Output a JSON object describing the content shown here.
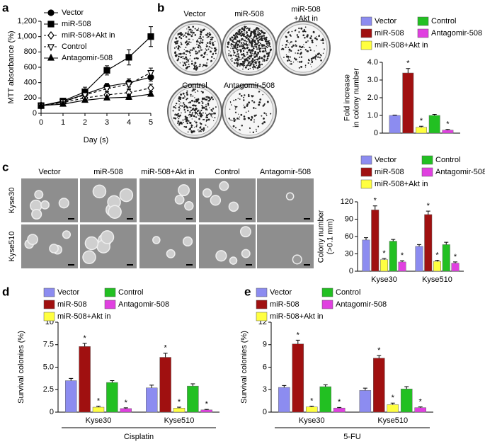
{
  "chart_data": [
    {
      "type": "line",
      "panel": "a",
      "y_label": "MTT absorbance (%)",
      "x_label": "Day (s)",
      "x": [
        0,
        1,
        2,
        3,
        4,
        5
      ],
      "xlim": [
        0,
        5
      ],
      "xticks": [
        0,
        1,
        2,
        3,
        4,
        5
      ],
      "ylim": [
        0,
        1200
      ],
      "yticks": [
        0,
        200,
        400,
        600,
        800,
        {
          "value": 1000,
          "label": "1,000"
        },
        {
          "value": 1200,
          "label": "1,200"
        }
      ],
      "series": [
        {
          "name": "Vector",
          "color": "#000000",
          "marker": "circle",
          "filled": true,
          "dashed": false,
          "values": [
            100,
            150,
            250,
            350,
            400,
            470
          ],
          "errors": [
            10,
            15,
            40,
            40,
            50,
            50
          ]
        },
        {
          "name": "miR-508",
          "color": "#000000",
          "marker": "square",
          "filled": true,
          "dashed": false,
          "values": [
            100,
            160,
            280,
            560,
            730,
            1000
          ],
          "errors": [
            10,
            15,
            60,
            60,
            100,
            130
          ]
        },
        {
          "name": "miR-508+Akt in",
          "color": "#000000",
          "marker": "diamond",
          "filled": false,
          "dashed": true,
          "values": [
            100,
            140,
            200,
            240,
            270,
            330
          ],
          "errors": [
            10,
            15,
            30,
            40,
            40,
            50
          ]
        },
        {
          "name": "Control",
          "color": "#000000",
          "marker": "triangle-down",
          "filled": false,
          "dashed": true,
          "values": [
            100,
            150,
            240,
            320,
            380,
            530
          ],
          "errors": [
            10,
            15,
            40,
            40,
            50,
            60
          ]
        },
        {
          "name": "Antagomir-508",
          "color": "#000000",
          "marker": "triangle",
          "filled": true,
          "dashed": false,
          "values": [
            100,
            120,
            170,
            200,
            210,
            250
          ],
          "errors": [
            10,
            10,
            20,
            25,
            30,
            30
          ]
        }
      ]
    },
    {
      "type": "bar",
      "panel": "b",
      "y_label": "Fold increase\nin colony number",
      "ylim": [
        0,
        4
      ],
      "yticks": [
        0,
        {
          "value": 1,
          "label": "1.0"
        },
        {
          "value": 2,
          "label": "2.0"
        },
        {
          "value": 3,
          "label": "3.0"
        },
        {
          "value": 4,
          "label": "4.0"
        }
      ],
      "series": [
        {
          "name": "Vector",
          "color": "#8c8cf0",
          "values": [
            1.0
          ],
          "errors": [
            0.02
          ]
        },
        {
          "name": "miR-508",
          "color": "#a01010",
          "values": [
            3.4
          ],
          "errors": [
            0.25
          ],
          "annotations": [
            "*"
          ]
        },
        {
          "name": "miR-508+Akt in",
          "color": "#ffff40",
          "values": [
            0.33
          ],
          "errors": [
            0.06
          ],
          "annotations": [
            "*"
          ]
        },
        {
          "name": "Control",
          "color": "#22c022",
          "values": [
            1.0
          ],
          "errors": [
            0.06
          ]
        },
        {
          "name": "Antagomir-508",
          "color": "#e040e0",
          "values": [
            0.17
          ],
          "errors": [
            0.04
          ],
          "annotations": [
            "*"
          ]
        }
      ]
    },
    {
      "type": "bar",
      "panel": "c",
      "y_label": "Colony number\n(>0.1 mm)",
      "categories": [
        "Kyse30",
        "Kyse510"
      ],
      "ylim": [
        0,
        120
      ],
      "yticks": [
        0,
        30,
        60,
        90,
        120
      ],
      "series": [
        {
          "name": "Vector",
          "color": "#8c8cf0",
          "values": [
            54,
            43
          ],
          "errors": [
            4,
            3
          ]
        },
        {
          "name": "miR-508",
          "color": "#a01010",
          "values": [
            106,
            98
          ],
          "errors": [
            7,
            6
          ],
          "annotations": [
            "*",
            "*"
          ]
        },
        {
          "name": "miR-508+Akt in",
          "color": "#ffff40",
          "values": [
            20,
            17
          ],
          "errors": [
            2,
            2
          ],
          "annotations": [
            "*",
            "*"
          ]
        },
        {
          "name": "Control",
          "color": "#22c022",
          "values": [
            52,
            46
          ],
          "errors": [
            3,
            4
          ]
        },
        {
          "name": "Antagomir-508",
          "color": "#e040e0",
          "values": [
            16,
            14
          ],
          "errors": [
            2,
            2
          ],
          "annotations": [
            "*",
            "*"
          ]
        }
      ]
    },
    {
      "type": "bar",
      "panel": "d",
      "y_label": "Survival colonies (%)",
      "x_label": "Cisplatin",
      "categories": [
        "Kyse30",
        "Kyse510"
      ],
      "ylim": [
        0,
        10
      ],
      "yticks": [
        0,
        2.5,
        {
          "value": 5,
          "label": "5.0"
        },
        7.5,
        10
      ],
      "series": [
        {
          "name": "Vector",
          "color": "#8c8cf0",
          "values": [
            3.5,
            2.7
          ],
          "errors": [
            0.25,
            0.3
          ]
        },
        {
          "name": "miR-508",
          "color": "#a01010",
          "values": [
            7.3,
            6.1
          ],
          "errors": [
            0.35,
            0.45
          ],
          "annotations": [
            "*",
            "*"
          ]
        },
        {
          "name": "miR-508+Akt in",
          "color": "#ffff40",
          "values": [
            0.55,
            0.45
          ],
          "errors": [
            0.12,
            0.1
          ],
          "annotations": [
            "*",
            "*"
          ]
        },
        {
          "name": "Control",
          "color": "#22c022",
          "values": [
            3.3,
            2.9
          ],
          "errors": [
            0.2,
            0.25
          ]
        },
        {
          "name": "Antagomir-508",
          "color": "#e040e0",
          "values": [
            0.4,
            0.25
          ],
          "errors": [
            0.08,
            0.06
          ],
          "annotations": [
            "*",
            "*"
          ]
        }
      ]
    },
    {
      "type": "bar",
      "panel": "e",
      "y_label": "Survival colonies (%)",
      "x_label": "5-FU",
      "categories": [
        "Kyse30",
        "Kyse510"
      ],
      "ylim": [
        0,
        12
      ],
      "yticks": [
        0,
        3,
        6,
        9,
        12
      ],
      "series": [
        {
          "name": "Vector",
          "color": "#8c8cf0",
          "values": [
            3.3,
            2.9
          ],
          "errors": [
            0.25,
            0.3
          ]
        },
        {
          "name": "miR-508",
          "color": "#a01010",
          "values": [
            9.1,
            7.2
          ],
          "errors": [
            0.5,
            0.35
          ],
          "annotations": [
            "*",
            "*"
          ]
        },
        {
          "name": "miR-508+Akt in",
          "color": "#ffff40",
          "values": [
            0.7,
            1.0
          ],
          "errors": [
            0.1,
            0.2
          ],
          "annotations": [
            "*",
            "*"
          ]
        },
        {
          "name": "Control",
          "color": "#22c022",
          "values": [
            3.4,
            3.1
          ],
          "errors": [
            0.25,
            0.3
          ]
        },
        {
          "name": "Antagomir-508",
          "color": "#e040e0",
          "values": [
            0.55,
            0.6
          ],
          "errors": [
            0.08,
            0.1
          ],
          "annotations": [
            "*",
            "*"
          ]
        }
      ]
    }
  ],
  "plate_images": {
    "labels": [
      "Vector",
      "miR-508",
      "miR-508\n+Akt in",
      "Control",
      "Antagomir-508"
    ]
  },
  "cell_images": {
    "columns": [
      "Vector",
      "miR-508",
      "miR-508+Akt in",
      "Control",
      "Antagomir-508"
    ],
    "rows": [
      "Kyse30",
      "Kyse510"
    ]
  }
}
